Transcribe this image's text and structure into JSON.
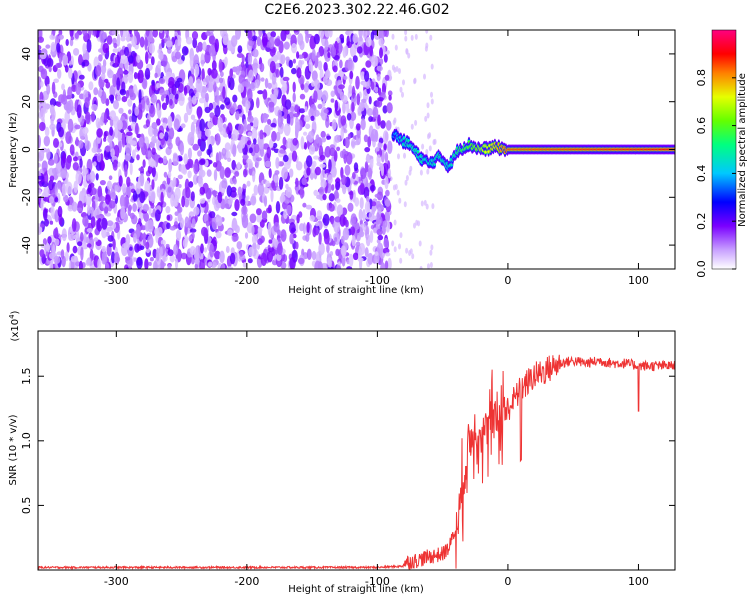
{
  "title": "C2E6.2023.302.22.46.G02",
  "chart_data": [
    {
      "type": "heatmap",
      "title": "C2E6.2023.302.22.46.G02",
      "xlabel": "Height of straight line (km)",
      "ylabel": "Frequency (Hz)",
      "xlim": [
        -360,
        128
      ],
      "ylim": [
        -50,
        50
      ],
      "x_ticks": [
        -300,
        -200,
        -100,
        0,
        100
      ],
      "y_ticks": [
        -40,
        -20,
        0,
        20,
        40
      ],
      "colorbar": {
        "label": "Normalized spectral amplitude",
        "range": [
          0,
          1
        ],
        "ticks": [
          "0.0",
          "0.2",
          "0.4",
          "0.6",
          "0.8"
        ],
        "colormap": [
          "#ffffff",
          "#7a00ff",
          "#0000ff",
          "#00c8ff",
          "#00ff64",
          "#c8ff00",
          "#ff8000",
          "#ff0000",
          "#ff0080"
        ]
      },
      "noise_region": {
        "x_from": -360,
        "x_to": -90,
        "typical_amplitude": 0.12
      },
      "signal_track": [
        {
          "x": -88,
          "f": 7,
          "amp": 0.35
        },
        {
          "x": -82,
          "f": 4,
          "amp": 0.45
        },
        {
          "x": -75,
          "f": 2,
          "amp": 0.5
        },
        {
          "x": -68,
          "f": -3,
          "amp": 0.5
        },
        {
          "x": -60,
          "f": -6,
          "amp": 0.45
        },
        {
          "x": -52,
          "f": -3,
          "amp": 0.5
        },
        {
          "x": -45,
          "f": -7,
          "amp": 0.45
        },
        {
          "x": -38,
          "f": 0,
          "amp": 0.55
        },
        {
          "x": -30,
          "f": 2,
          "amp": 0.6
        },
        {
          "x": -20,
          "f": 0,
          "amp": 0.7
        },
        {
          "x": -10,
          "f": 1,
          "amp": 0.75
        },
        {
          "x": 0,
          "f": 0,
          "amp": 0.85
        },
        {
          "x": 128,
          "f": 0,
          "amp": 0.9
        }
      ]
    },
    {
      "type": "line",
      "xlabel": "Height of straight line (km)",
      "ylabel": "SNR (10 * v/v)",
      "y_multiplier_label": "(x10^4)",
      "xlim": [
        -360,
        128
      ],
      "ylim": [
        0,
        1.85
      ],
      "x_ticks": [
        -300,
        -200,
        -100,
        0,
        100
      ],
      "y_ticks": [
        "0.5",
        "1.0",
        "1.5"
      ],
      "y_tick_values": [
        0.5,
        1.0,
        1.5
      ],
      "series": [
        {
          "color": "#ee3333",
          "x": [
            -360,
            -300,
            -200,
            -100,
            -80,
            -70,
            -60,
            -50,
            -45,
            -40,
            -35,
            -30,
            -25,
            -20,
            -15,
            -10,
            -5,
            0,
            10,
            20,
            30,
            40,
            50,
            60,
            70,
            80,
            90,
            100,
            110,
            128
          ],
          "y": [
            0.02,
            0.02,
            0.02,
            0.02,
            0.03,
            0.05,
            0.08,
            0.1,
            0.15,
            0.3,
            0.6,
            1.0,
            1.1,
            1.05,
            1.1,
            1.15,
            1.2,
            1.25,
            1.4,
            1.5,
            1.55,
            1.6,
            1.62,
            1.6,
            1.62,
            1.6,
            1.6,
            1.58,
            1.58,
            1.58
          ]
        }
      ]
    }
  ]
}
